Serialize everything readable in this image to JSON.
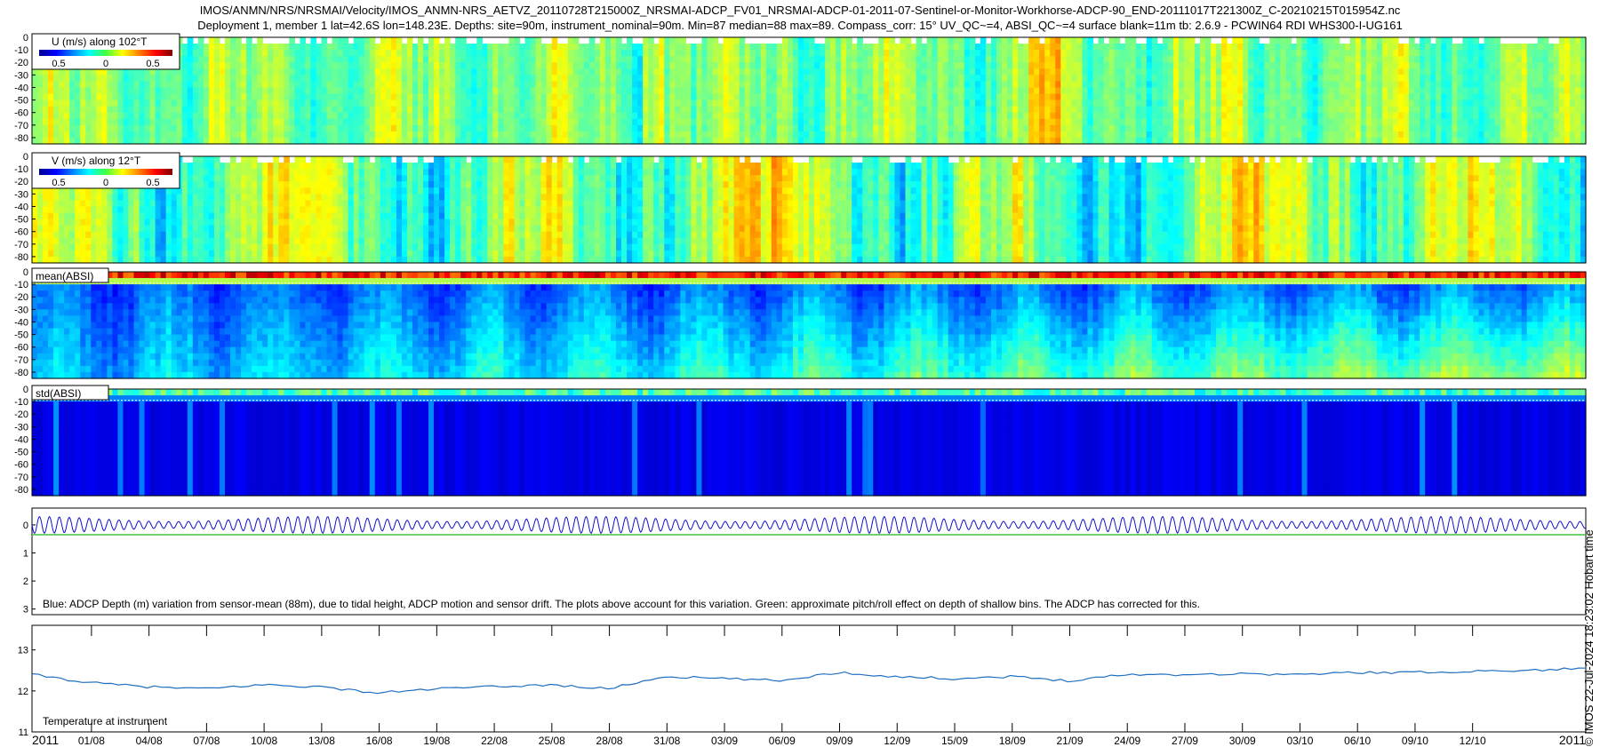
{
  "title": {
    "line1": "IMOS/ANMN/NRS/NRSMAI/Velocity/IMOS_ANMN-NRS_AETVZ_20110728T215000Z_NRSMAI-ADCP_FV01_NRSMAI-ADCP-01-2011-07-Sentinel-or-Monitor-Workhorse-ADCP-90_END-20111017T221300Z_C-20210215T015954Z.nc",
    "line2": "Deployment 1, member 1 lat=42.6S lon=148.23E. Depths: site=90m, instrument_nominal=90m. Min=87 median=88 max=89. Compass_corr: 15° UV_QC~=4, ABSI_QC~=4 surface blank=11m tb: 2.6.9 - PCWIN64 RDI WHS300-I-UG161"
  },
  "side_label": "© IMOS 22-Jul-2024 18:23:02 Hobart time",
  "chart_data": [
    {
      "type": "heatmap",
      "id": "u",
      "legend": "U (m/s) along 102°T",
      "colorbar_ticks": [
        "0.5",
        "0",
        "0.5"
      ],
      "colormap": "jet",
      "y_ticks": [
        "0",
        "-10",
        "-20",
        "-30",
        "-40",
        "-50",
        "-60",
        "-70",
        "-80"
      ],
      "ylim": [
        -85,
        0
      ]
    },
    {
      "type": "heatmap",
      "id": "v",
      "legend": "V (m/s) along 12°T",
      "colorbar_ticks": [
        "0.5",
        "0",
        "0.5"
      ],
      "colormap": "jet",
      "y_ticks": [
        "0",
        "-10",
        "-20",
        "-30",
        "-40",
        "-50",
        "-60",
        "-70",
        "-80"
      ],
      "ylim": [
        -85,
        0
      ]
    },
    {
      "type": "heatmap",
      "id": "mean_absi",
      "legend": "mean(ABSI)",
      "colormap": "jet",
      "y_ticks": [
        "0",
        "-10",
        "-20",
        "-30",
        "-40",
        "-50",
        "-60",
        "-70",
        "-80"
      ],
      "ylim": [
        -85,
        0
      ]
    },
    {
      "type": "heatmap",
      "id": "std_absi",
      "legend": "std(ABSI)",
      "colormap": "jet",
      "y_ticks": [
        "0",
        "-10",
        "-20",
        "-30",
        "-40",
        "-50",
        "-60",
        "-70",
        "-80"
      ],
      "ylim": [
        -85,
        0
      ]
    },
    {
      "type": "line",
      "id": "depth",
      "annotation": "Blue: ADCP Depth (m) variation from sensor-mean (88m), due to tidal height, ADCP motion and sensor drift. The plots above account for this variation. Green: approximate pitch/roll effect on depth of shallow bins. The ADCP has corrected for this.",
      "y_ticks": [
        "0",
        "1",
        "2",
        "3"
      ],
      "ylim": [
        -0.6,
        3.2
      ],
      "green_level": 0.35,
      "tidal_amplitude": 0.3,
      "colors": {
        "blue": "#1010d0",
        "green": "#40c040"
      }
    },
    {
      "type": "line",
      "id": "temperature",
      "annotation": "Temperature at instrument",
      "y_ticks": [
        "11",
        "12",
        "13"
      ],
      "ylim": [
        11,
        13.6
      ],
      "color": "#1f6fc0",
      "series_x_days": [
        0,
        3,
        6,
        9,
        12,
        15,
        18,
        21,
        24,
        27,
        30,
        33,
        36,
        39,
        42,
        45,
        48,
        51,
        54,
        57,
        60,
        63,
        66,
        69,
        72,
        75,
        78,
        81
      ],
      "series_y": [
        12.4,
        12.2,
        12.1,
        12.05,
        12.15,
        12.1,
        11.95,
        12.05,
        12.1,
        12.15,
        12.05,
        12.35,
        12.3,
        12.25,
        12.45,
        12.35,
        12.3,
        12.35,
        12.25,
        12.4,
        12.4,
        12.42,
        12.4,
        12.45,
        12.45,
        12.48,
        12.5,
        12.55
      ]
    }
  ],
  "x_axis": {
    "labels": [
      "2011",
      "01/08",
      "04/08",
      "07/08",
      "10/08",
      "13/08",
      "16/08",
      "19/08",
      "22/08",
      "25/08",
      "28/08",
      "31/08",
      "03/09",
      "06/09",
      "09/09",
      "12/09",
      "15/09",
      "18/09",
      "21/09",
      "24/09",
      "27/09",
      "30/09",
      "03/10",
      "06/10",
      "09/10",
      "12/10",
      "2011"
    ],
    "x_days": [
      0,
      3.1,
      6.1,
      9.1,
      12.1,
      15.1,
      18.1,
      21.1,
      24.1,
      27.1,
      30.1,
      33.1,
      36.1,
      39.1,
      42.1,
      45.1,
      48.1,
      51.1,
      54.1,
      57.1,
      60.1,
      63.1,
      66.1,
      69.1,
      72.1,
      75.1,
      81
    ],
    "range_days": [
      0,
      81
    ]
  }
}
